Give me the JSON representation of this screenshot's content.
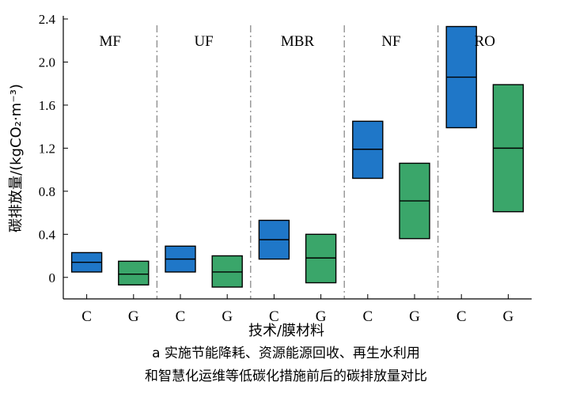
{
  "chart_data": {
    "type": "box",
    "xlabel": "技术/膜材料",
    "ylabel": "碳排放量/(kgCO₂·m⁻³)",
    "ylim": [
      -0.2,
      2.4
    ],
    "yticks": [
      "0",
      "0.4",
      "0.8",
      "1.2",
      "1.6",
      "2.0",
      "2.4"
    ],
    "groups": [
      "MF",
      "UF",
      "MBR",
      "NF",
      "RO"
    ],
    "categories": [
      "C",
      "G"
    ],
    "boxes": [
      {
        "group": "MF",
        "category": "C",
        "low": 0.05,
        "median": 0.14,
        "high": 0.23
      },
      {
        "group": "MF",
        "category": "G",
        "low": -0.07,
        "median": 0.03,
        "high": 0.15
      },
      {
        "group": "UF",
        "category": "C",
        "low": 0.05,
        "median": 0.17,
        "high": 0.29
      },
      {
        "group": "UF",
        "category": "G",
        "low": -0.09,
        "median": 0.05,
        "high": 0.2
      },
      {
        "group": "MBR",
        "category": "C",
        "low": 0.17,
        "median": 0.35,
        "high": 0.53
      },
      {
        "group": "MBR",
        "category": "G",
        "low": -0.05,
        "median": 0.18,
        "high": 0.4
      },
      {
        "group": "NF",
        "category": "C",
        "low": 0.92,
        "median": 1.19,
        "high": 1.45
      },
      {
        "group": "NF",
        "category": "G",
        "low": 0.36,
        "median": 0.71,
        "high": 1.06
      },
      {
        "group": "RO",
        "category": "C",
        "low": 1.39,
        "median": 1.86,
        "high": 2.33
      },
      {
        "group": "RO",
        "category": "G",
        "low": 0.61,
        "median": 1.2,
        "high": 1.79
      }
    ],
    "colors": {
      "C": "#1f77c8",
      "G": "#3aa66a"
    },
    "grid": false
  },
  "caption": {
    "line1": "a 实施节能降耗、资源能源回收、再生水利用",
    "line2": "和智慧化运维等低碳化措施前后的碳排放量对比"
  }
}
